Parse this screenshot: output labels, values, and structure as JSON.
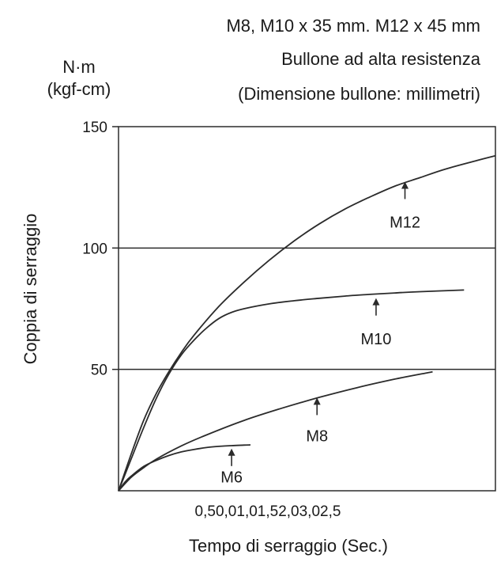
{
  "header": {
    "line1": "M8, M10 x 35 mm. M12 x 45 mm",
    "line2": "Bullone ad alta resistenza",
    "line3": "(Dimensione bullone: millimetri)"
  },
  "units": {
    "primary": "N·m",
    "secondary": "(kgf-cm)"
  },
  "chart_data": {
    "type": "line",
    "title": "M8, M10 x 35 mm. M12 x 45 mm",
    "xlabel": "Tempo di serraggio (Sec.)",
    "ylabel": "Coppia di serraggio",
    "xlim": [
      0,
      3.0
    ],
    "ylim": [
      0,
      150
    ],
    "x_tick_text": "0,50,01,01,52,03,02,5",
    "y_ticks": [
      {
        "value": 50,
        "label": "50"
      },
      {
        "value": 100,
        "label": "100"
      },
      {
        "value": 150,
        "label": "150"
      }
    ],
    "grid_y": [
      50,
      100
    ],
    "line_color": "#2b2b2b",
    "series": [
      {
        "name": "M6",
        "label_x": 0.9,
        "label_y": 6,
        "arrow_x": 0.9,
        "arrow_y": 18,
        "x": [
          0,
          0.05,
          0.1,
          0.2,
          0.3,
          0.4,
          0.5,
          0.6,
          0.7,
          0.8,
          0.9,
          1.0,
          1.05
        ],
        "y": [
          0,
          3.5,
          6,
          10,
          12.5,
          14.5,
          16,
          17,
          17.8,
          18.3,
          18.6,
          18.8,
          18.9
        ]
      },
      {
        "name": "M8",
        "label_x": 1.58,
        "label_y": 23,
        "arrow_x": 1.58,
        "arrow_y": 39,
        "x": [
          0,
          0.1,
          0.2,
          0.3,
          0.5,
          0.7,
          1.0,
          1.3,
          1.6,
          1.9,
          2.2,
          2.5
        ],
        "y": [
          0,
          5.5,
          9.5,
          13,
          18.5,
          23,
          29,
          34,
          38.5,
          42.5,
          46,
          49
        ]
      },
      {
        "name": "M10",
        "label_x": 2.05,
        "label_y": 63,
        "arrow_x": 2.05,
        "arrow_y": 80,
        "x": [
          0,
          0.1,
          0.2,
          0.3,
          0.4,
          0.5,
          0.6,
          0.7,
          0.8,
          0.9,
          1.0,
          1.2,
          1.4,
          1.6,
          1.8,
          2.0,
          2.2,
          2.4,
          2.75
        ],
        "y": [
          0,
          13,
          26,
          38,
          48,
          56,
          62,
          67,
          71,
          73.5,
          75,
          77,
          78.3,
          79.3,
          80.2,
          80.9,
          81.5,
          82,
          82.7
        ]
      },
      {
        "name": "M12",
        "label_x": 2.28,
        "label_y": 111,
        "arrow_x": 2.28,
        "arrow_y": 128,
        "x": [
          0,
          0.1,
          0.2,
          0.3,
          0.4,
          0.5,
          0.6,
          0.8,
          1.0,
          1.2,
          1.4,
          1.6,
          1.8,
          2.0,
          2.2,
          2.4,
          2.6,
          2.85,
          3.0
        ],
        "y": [
          0,
          15,
          29,
          40,
          49,
          57,
          64,
          76,
          86,
          95,
          103,
          110,
          116,
          121,
          125.5,
          129,
          132.5,
          136,
          138
        ]
      }
    ]
  }
}
